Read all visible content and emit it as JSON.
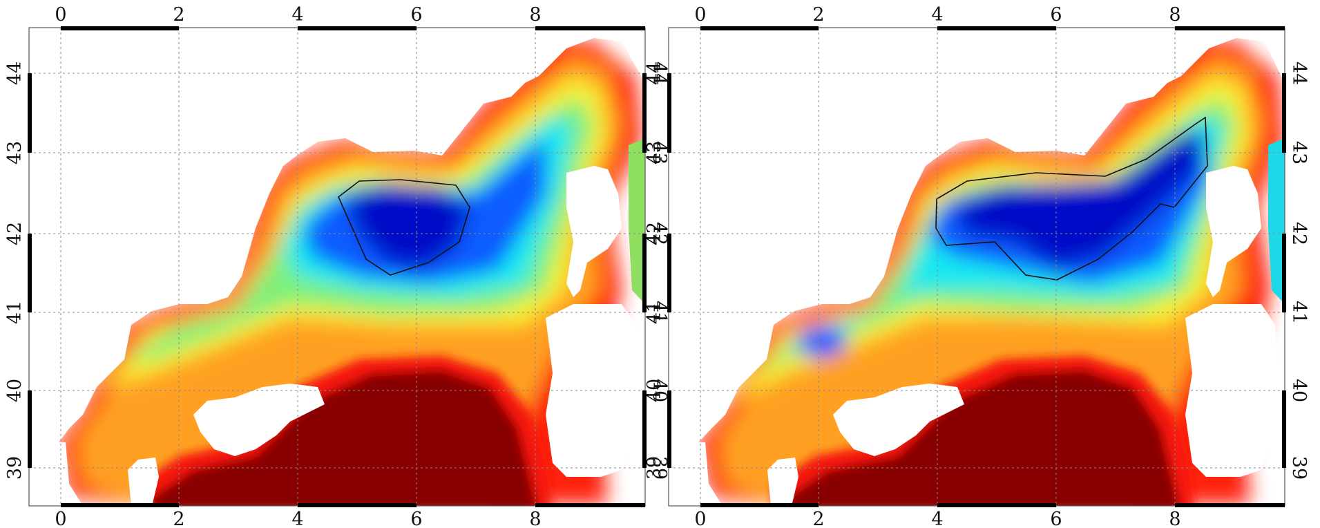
{
  "colors": {
    "land": "#ffffff",
    "deep_core": "#0010c8",
    "blue": "#0a5cff",
    "cyan": "#19e8f0",
    "green": "#7ff07a",
    "yellow": "#f8f030",
    "orange": "#ffa020",
    "red": "#f41410",
    "dark_red": "#880000",
    "contour_line": "#111111",
    "grid": "#8a8a8a",
    "frame": "#000000"
  },
  "panels": [
    {
      "id": "left",
      "x_ticks": [
        "0",
        "2",
        "4",
        "6",
        "8"
      ],
      "y_ticks": [
        "44",
        "43",
        "42",
        "41",
        "40",
        "39"
      ]
    },
    {
      "id": "right",
      "x_ticks": [
        "0",
        "2",
        "4",
        "6",
        "8"
      ],
      "y_ticks": [
        "44",
        "43",
        "42",
        "41",
        "40",
        "39"
      ]
    }
  ]
}
